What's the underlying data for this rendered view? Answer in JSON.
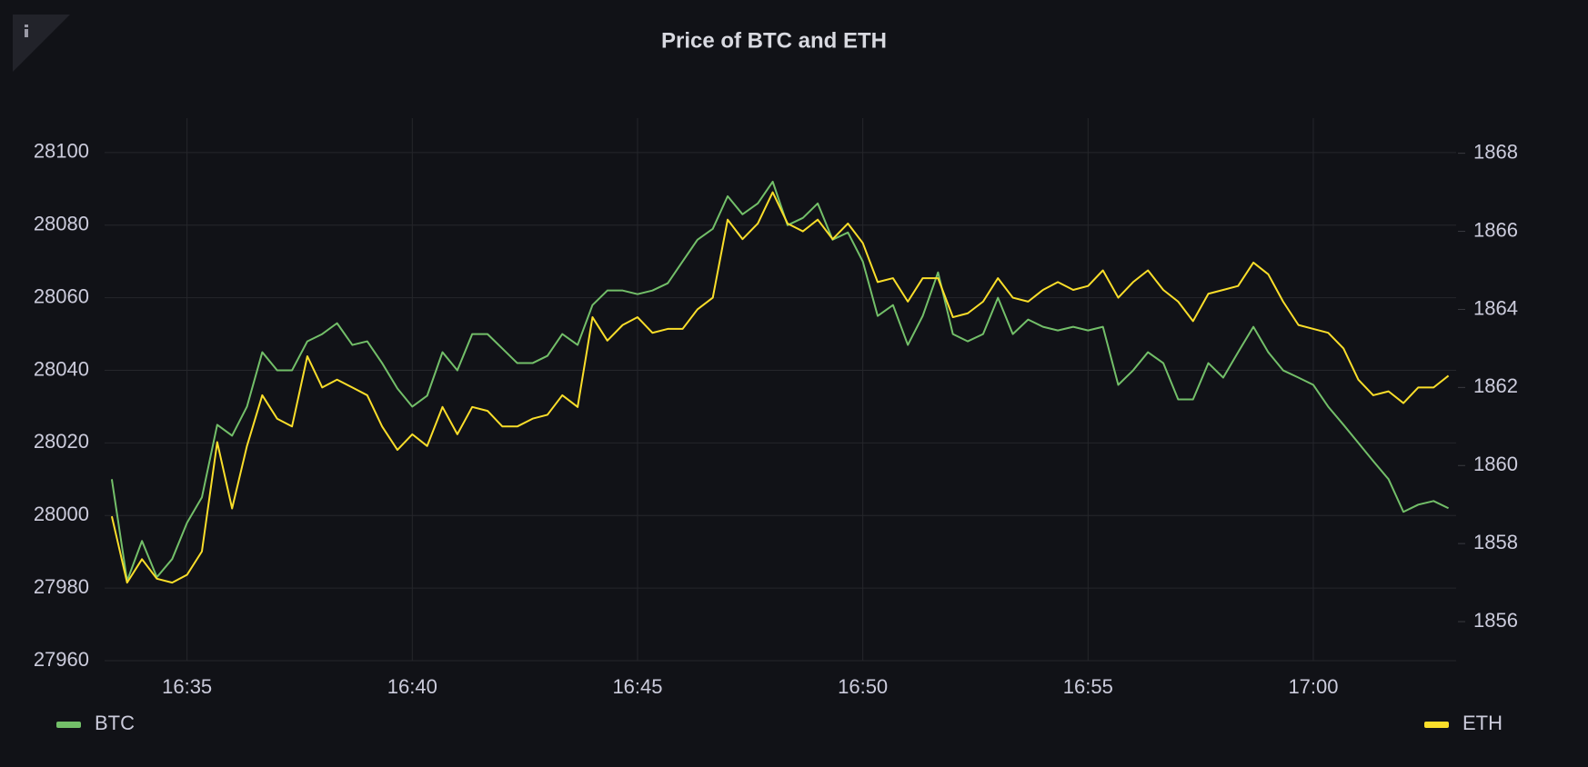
{
  "chart_data": {
    "type": "line",
    "title": "Price of BTC and ETH",
    "x": [
      993.33,
      993.67,
      994,
      994.33,
      994.67,
      995,
      995.33,
      995.67,
      996,
      996.33,
      996.67,
      997,
      997.33,
      997.67,
      998,
      998.33,
      998.67,
      999,
      999.33,
      999.67,
      1000,
      1000.33,
      1000.67,
      1001,
      1001.33,
      1001.67,
      1002,
      1002.33,
      1002.67,
      1003,
      1003.33,
      1003.67,
      1004,
      1004.33,
      1004.67,
      1005,
      1005.33,
      1005.67,
      1006,
      1006.33,
      1006.67,
      1007,
      1007.33,
      1007.67,
      1008,
      1008.33,
      1008.67,
      1009,
      1009.33,
      1009.67,
      1010,
      1010.33,
      1010.67,
      1011,
      1011.33,
      1011.67,
      1012,
      1012.33,
      1012.67,
      1013,
      1013.33,
      1013.67,
      1014,
      1014.33,
      1014.67,
      1015,
      1015.33,
      1015.67,
      1016,
      1016.33,
      1016.67,
      1017,
      1017.33,
      1017.67,
      1018,
      1018.33,
      1018.67,
      1019,
      1019.33,
      1019.67,
      1020,
      1020.33,
      1020.67,
      1021,
      1021.33,
      1021.67,
      1022,
      1022.33,
      1022.67,
      1023
    ],
    "xlim": [
      993.17,
      1023.17
    ],
    "xticks": [
      {
        "value": 995,
        "label": "16:35"
      },
      {
        "value": 1000,
        "label": "16:40"
      },
      {
        "value": 1005,
        "label": "16:45"
      },
      {
        "value": 1010,
        "label": "16:50"
      },
      {
        "value": 1015,
        "label": "16:55"
      },
      {
        "value": 1020,
        "label": "17:00"
      }
    ],
    "ylim": [
      27960,
      28109.5
    ],
    "yticks": [
      27960,
      27980,
      28000,
      28020,
      28040,
      28060,
      28080,
      28100
    ],
    "y2lim": [
      1855,
      1868.9
    ],
    "y2ticks": [
      1856,
      1858,
      1860,
      1862,
      1864,
      1866,
      1868
    ],
    "grid": true,
    "legend": "bottom",
    "series": [
      {
        "name": "BTC",
        "color": "#73bf69",
        "axis": "y",
        "values": [
          28010,
          27982,
          27993,
          27983,
          27988,
          27998,
          28005,
          28025,
          28022,
          28030,
          28045,
          28040,
          28040,
          28048,
          28050,
          28053,
          28047,
          28048,
          28042,
          28035,
          28030,
          28033,
          28045,
          28040,
          28050,
          28050,
          28046,
          28042,
          28042,
          28044,
          28050,
          28047,
          28058,
          28062,
          28062,
          28061,
          28062,
          28064,
          28070,
          28076,
          28079,
          28088,
          28083,
          28086,
          28092,
          28080,
          28082,
          28086,
          28076,
          28078,
          28070,
          28055,
          28058,
          28047,
          28055,
          28067,
          28050,
          28048,
          28050,
          28060,
          28050,
          28054,
          28052,
          28051,
          28052,
          28051,
          28052,
          28036,
          28040,
          28045,
          28042,
          28032,
          28032,
          28042,
          28038,
          28045,
          28052,
          28045,
          28040,
          28038,
          28036,
          28030,
          28025,
          28020,
          28015,
          28010,
          28001,
          28003,
          28004,
          28002
        ]
      },
      {
        "name": "ETH",
        "color": "#fade2a",
        "axis": "y2",
        "values": [
          1858.7,
          1857.0,
          1857.6,
          1857.1,
          1857.0,
          1857.2,
          1857.8,
          1860.6,
          1858.9,
          1860.5,
          1861.8,
          1861.2,
          1861.0,
          1862.8,
          1862.0,
          1862.2,
          1862.0,
          1861.8,
          1861.0,
          1860.4,
          1860.8,
          1860.5,
          1861.5,
          1860.8,
          1861.5,
          1861.4,
          1861.0,
          1861.0,
          1861.2,
          1861.3,
          1861.8,
          1861.5,
          1863.8,
          1863.2,
          1863.6,
          1863.8,
          1863.4,
          1863.5,
          1863.5,
          1864.0,
          1864.3,
          1866.3,
          1865.8,
          1866.2,
          1867.0,
          1866.2,
          1866.0,
          1866.3,
          1865.8,
          1866.2,
          1865.7,
          1864.7,
          1864.8,
          1864.2,
          1864.8,
          1864.8,
          1863.8,
          1863.9,
          1864.2,
          1864.8,
          1864.3,
          1864.2,
          1864.5,
          1864.7,
          1864.5,
          1864.6,
          1865.0,
          1864.3,
          1864.7,
          1865.0,
          1864.5,
          1864.2,
          1863.7,
          1864.4,
          1864.5,
          1864.6,
          1865.2,
          1864.9,
          1864.2,
          1863.6,
          1863.5,
          1863.4,
          1863.0,
          1862.2,
          1861.8,
          1861.9,
          1861.6,
          1862.0,
          1862.0,
          1862.3
        ]
      }
    ]
  }
}
